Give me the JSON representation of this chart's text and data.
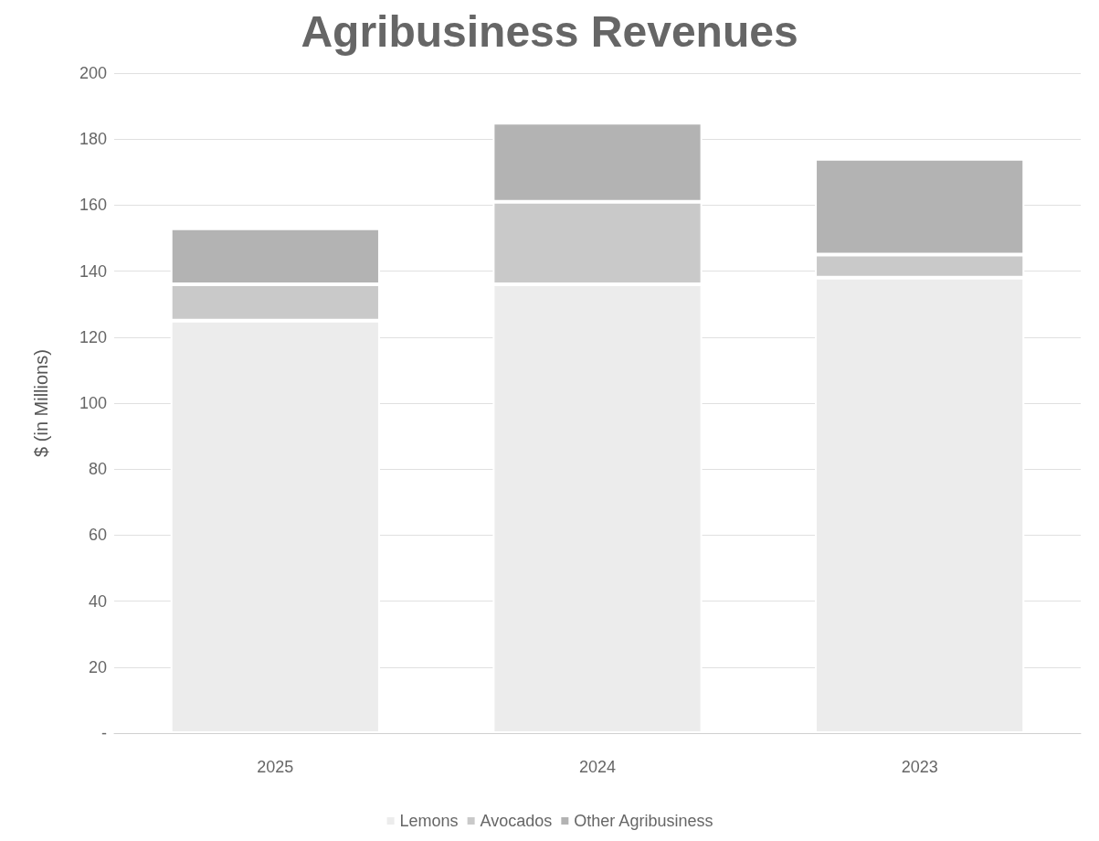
{
  "chart_data": {
    "type": "bar",
    "title": "Agribusiness Revenues",
    "ylabel": "$ (in Millions)",
    "categories": [
      "2025",
      "2024",
      "2023"
    ],
    "series": [
      {
        "name": "Lemons",
        "color": "#ececec",
        "values": [
          125,
          136,
          138
        ]
      },
      {
        "name": "Avocados",
        "color": "#c9c9c9",
        "values": [
          11,
          25,
          7
        ]
      },
      {
        "name": "Other Agribusiness",
        "color": "#b3b3b3",
        "values": [
          17,
          24,
          29
        ]
      }
    ],
    "stacked": true,
    "ylim": [
      0,
      200
    ],
    "yticks": [
      {
        "value": 0,
        "label": "-"
      },
      20,
      40,
      60,
      80,
      100,
      120,
      140,
      160,
      180,
      200
    ],
    "grid": "y",
    "legend": "bottom"
  }
}
